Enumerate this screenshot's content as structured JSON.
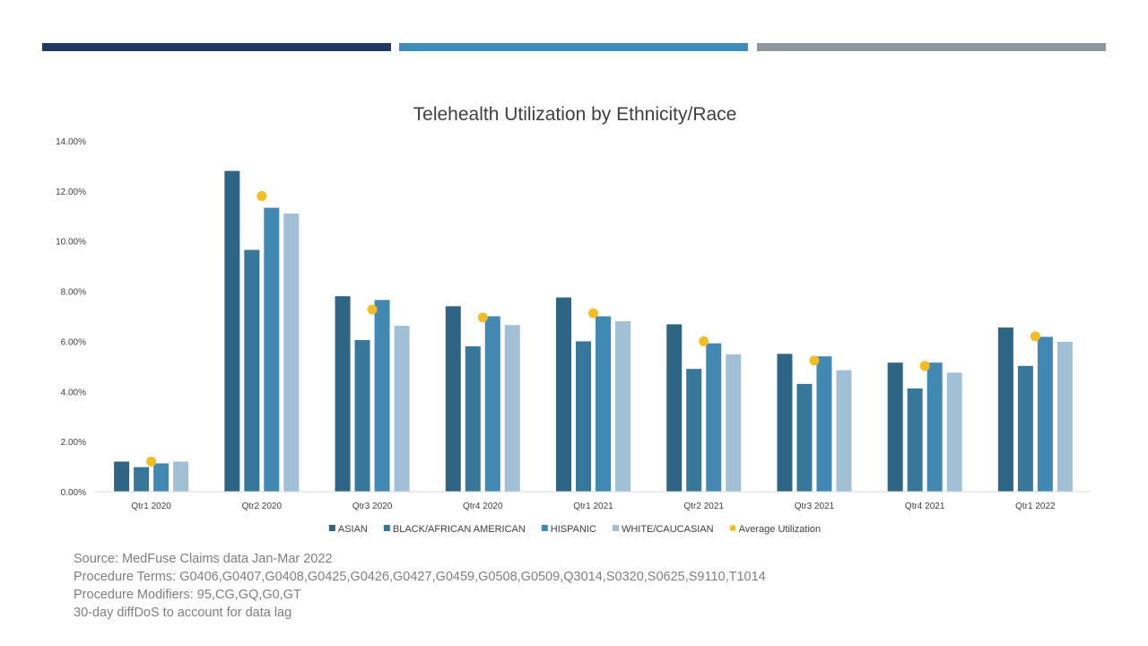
{
  "theme": {
    "bar1": "#1f3864",
    "bar2": "#3c8dbc",
    "bar3": "#8f979e"
  },
  "notes": {
    "source": "Source: MedFuse Claims data Jan-Mar 2022",
    "terms": "Procedure Terms: G0406,G0407,G0408,G0425,G0426,G0427,G0459,G0508,G0509,Q3014,S0320,S0625,S9110,T1014",
    "modifiers": "Procedure Modifiers: 95,CG,GQ,G0,GT",
    "lag": "30-day diffDoS to account for data lag"
  },
  "chart_data": {
    "type": "bar",
    "title": "Telehealth Utilization by Ethnicity/Race",
    "categories": [
      "Qtr1 2020",
      "Qtr2 2020",
      "Qtr3 2020",
      "Qtr4 2020",
      "Qtr1 2021",
      "Qtr2 2021",
      "Qtr3 2021",
      "Qtr4 2021",
      "Qtr1 2022"
    ],
    "series": [
      {
        "name": "ASIAN",
        "color": "#2e6484",
        "values": [
          1.2,
          12.8,
          7.8,
          7.4,
          7.75,
          6.68,
          5.5,
          5.15,
          6.55
        ]
      },
      {
        "name": "BLACK/AFRICAN AMERICAN",
        "color": "#37779a",
        "values": [
          0.98,
          9.65,
          6.05,
          5.8,
          6.0,
          4.9,
          4.3,
          4.12,
          5.02
        ]
      },
      {
        "name": "HISPANIC",
        "color": "#4189b2",
        "values": [
          1.13,
          11.33,
          7.65,
          7.0,
          7.0,
          5.92,
          5.4,
          5.15,
          6.18
        ]
      },
      {
        "name": "WHITE/CAUCASIAN",
        "color": "#a1bfd5",
        "values": [
          1.2,
          11.1,
          6.62,
          6.65,
          6.8,
          5.48,
          4.85,
          4.75,
          5.98
        ]
      }
    ],
    "average": {
      "name": "Average Utilization",
      "type": "scatter",
      "color": "#f2bd24",
      "values": [
        1.2,
        11.8,
        7.27,
        6.95,
        7.12,
        6.0,
        5.23,
        5.02,
        6.2
      ]
    },
    "ylim": [
      0,
      14
    ],
    "yticks": [
      "0.00%",
      "2.00%",
      "4.00%",
      "6.00%",
      "8.00%",
      "10.00%",
      "12.00%",
      "14.00%"
    ],
    "legend_position": "bottom",
    "grid": false
  }
}
